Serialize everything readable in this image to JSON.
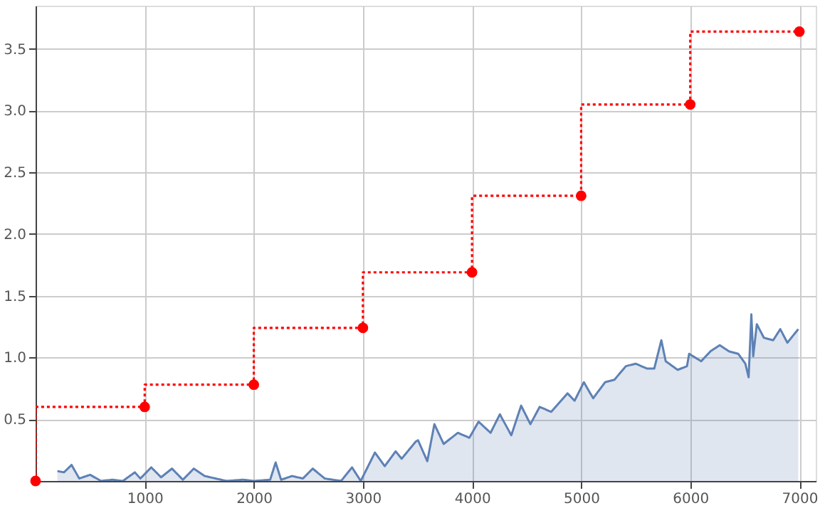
{
  "chart_data": {
    "type": "area",
    "xlim": [
      0,
      7150
    ],
    "ylim": [
      0,
      3.85
    ],
    "xticks": [
      1000,
      2000,
      3000,
      4000,
      5000,
      6000,
      7000
    ],
    "yticks": [
      {
        "value": 0.5,
        "label": "0.5"
      },
      {
        "value": 1,
        "label": "1.0"
      },
      {
        "value": 1.5,
        "label": "1.5"
      },
      {
        "value": 2,
        "label": "2.0"
      },
      {
        "value": 2.5,
        "label": "2.5"
      },
      {
        "value": 3,
        "label": "3.0"
      },
      {
        "value": 3.5,
        "label": "3.5"
      }
    ],
    "grid": true,
    "series": [
      {
        "color": "#5e81b5",
        "marker": "none",
        "line_style": "solid",
        "x": [
          200,
          260,
          330,
          400,
          500,
          600,
          700,
          800,
          910,
          960,
          1060,
          1150,
          1250,
          1350,
          1450,
          1550,
          1650,
          1750,
          1900,
          2000,
          2150,
          2200,
          2250,
          2350,
          2450,
          2540,
          2650,
          2800,
          2900,
          2980,
          3110,
          3200,
          3300,
          3355,
          3485,
          3505,
          3590,
          3655,
          3740,
          3870,
          3975,
          4060,
          4170,
          4255,
          4360,
          4450,
          4535,
          4620,
          4725,
          4875,
          4940,
          5025,
          5110,
          5220,
          5305,
          5410,
          5500,
          5605,
          5670,
          5735,
          5775,
          5885,
          5970,
          5990,
          6100,
          6185,
          6270,
          6355,
          6440,
          6505,
          6535,
          6560,
          6577,
          6610,
          6675,
          6760,
          6825,
          6890,
          6990
        ],
        "values": [
          0.08,
          0.07,
          0.13,
          0.02,
          0.05,
          0.0,
          0.01,
          0.0,
          0.07,
          0.02,
          0.11,
          0.03,
          0.1,
          0.01,
          0.1,
          0.04,
          0.02,
          0.0,
          0.01,
          0.0,
          0.01,
          0.15,
          0.01,
          0.04,
          0.02,
          0.1,
          0.02,
          0.0,
          0.11,
          0.0,
          0.23,
          0.12,
          0.24,
          0.18,
          0.32,
          0.33,
          0.16,
          0.46,
          0.3,
          0.39,
          0.35,
          0.48,
          0.39,
          0.54,
          0.37,
          0.61,
          0.46,
          0.6,
          0.56,
          0.71,
          0.65,
          0.8,
          0.67,
          0.8,
          0.82,
          0.93,
          0.95,
          0.91,
          0.91,
          1.14,
          0.97,
          0.9,
          0.93,
          1.03,
          0.97,
          1.05,
          1.1,
          1.05,
          1.03,
          0.95,
          0.84,
          1.35,
          1.01,
          1.27,
          1.16,
          1.14,
          1.23,
          1.12,
          1.23
        ]
      },
      {
        "type": "step",
        "color": "#ff0000",
        "marker": "circle",
        "line_style": "dotted",
        "x": [
          0,
          1000,
          2000,
          3000,
          4000,
          5000,
          6000,
          7000
        ],
        "values": [
          0,
          0.6,
          0.78,
          1.24,
          1.69,
          2.31,
          3.05,
          3.64
        ]
      }
    ]
  }
}
